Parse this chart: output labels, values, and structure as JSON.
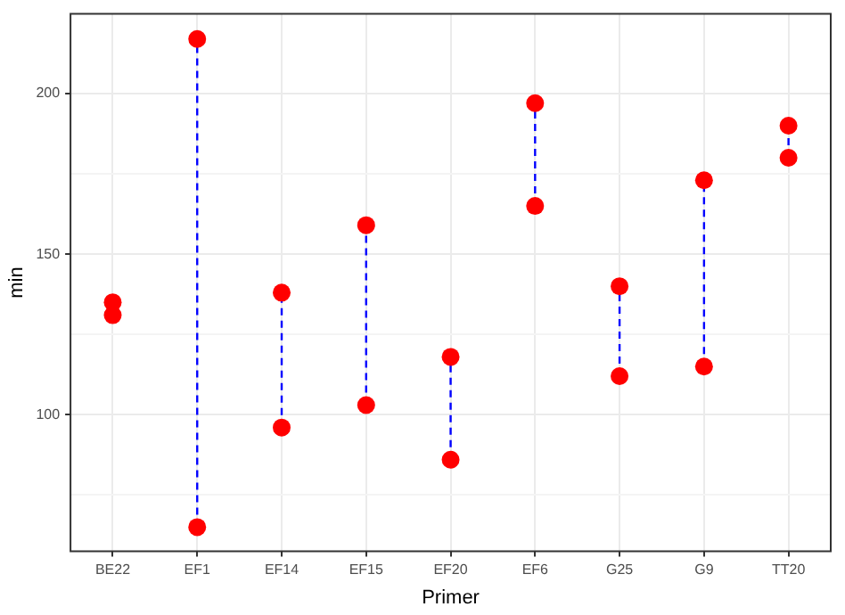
{
  "chart_data": {
    "type": "scatter",
    "xlabel": "Primer",
    "ylabel": "min",
    "categories": [
      "BE22",
      "EF1",
      "EF14",
      "EF15",
      "EF20",
      "EF6",
      "G25",
      "G9",
      "TT20"
    ],
    "series": [
      {
        "type": "line",
        "color": "#0000ff",
        "line_style": "dashed",
        "x": [
          "EF1",
          "EF1"
        ],
        "values": [
          65,
          217
        ]
      },
      {
        "type": "line",
        "color": "#0000ff",
        "line_style": "dashed",
        "x": [
          "EF14",
          "EF14"
        ],
        "values": [
          96,
          138
        ]
      },
      {
        "type": "line",
        "color": "#0000ff",
        "line_style": "dashed",
        "x": [
          "EF15",
          "EF15"
        ],
        "values": [
          103,
          159
        ]
      },
      {
        "type": "line",
        "color": "#0000ff",
        "line_style": "dashed",
        "x": [
          "EF20",
          "EF20"
        ],
        "values": [
          86,
          118
        ]
      },
      {
        "type": "line",
        "color": "#0000ff",
        "line_style": "dashed",
        "x": [
          "EF6",
          "EF6"
        ],
        "values": [
          165,
          197
        ]
      },
      {
        "type": "line",
        "color": "#0000ff",
        "line_style": "dashed",
        "x": [
          "G25",
          "G25"
        ],
        "values": [
          112,
          140
        ]
      },
      {
        "type": "line",
        "color": "#0000ff",
        "line_style": "dashed",
        "x": [
          "G9",
          "G9"
        ],
        "values": [
          115,
          173
        ]
      },
      {
        "type": "line",
        "color": "#0000ff",
        "line_style": "dashed",
        "x": [
          "TT20",
          "TT20"
        ],
        "values": [
          180,
          190
        ]
      },
      {
        "color": "#ff0000",
        "marker": "circle",
        "values": [
          135,
          217,
          138,
          159,
          118,
          197,
          140,
          173,
          190
        ]
      },
      {
        "color": "#ff0000",
        "marker": "circle",
        "values": [
          131,
          65,
          96,
          103,
          86,
          165,
          112,
          115,
          180
        ]
      }
    ],
    "ylim": [
      57.5,
      224.8
    ],
    "yticks": [
      {
        "value": 75,
        "label": null
      },
      100,
      {
        "value": 125,
        "label": null
      },
      150,
      {
        "value": 175,
        "label": null
      },
      200
    ],
    "grid": true,
    "legend": false
  }
}
